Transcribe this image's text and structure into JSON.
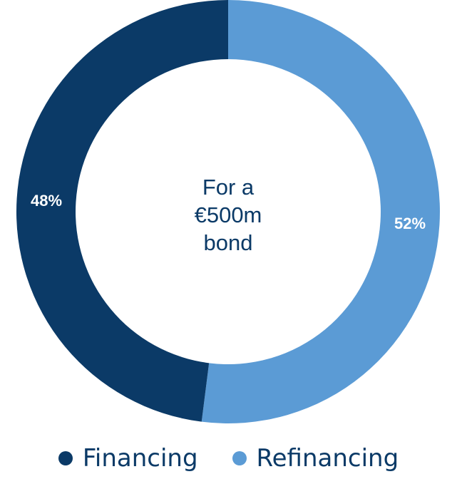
{
  "chart_data": {
    "type": "pie",
    "donut": true,
    "center_text": [
      "For a",
      "€500m",
      "bond"
    ],
    "slices": [
      {
        "name": "Financing",
        "value": 48,
        "label": "48%",
        "color": "#0b3a67"
      },
      {
        "name": "Refinancing",
        "value": 52,
        "label": "52%",
        "color": "#5b9bd5"
      }
    ],
    "legend": {
      "placement": "bottom",
      "entries": [
        "Financing",
        "Refinancing"
      ]
    },
    "title": ""
  }
}
